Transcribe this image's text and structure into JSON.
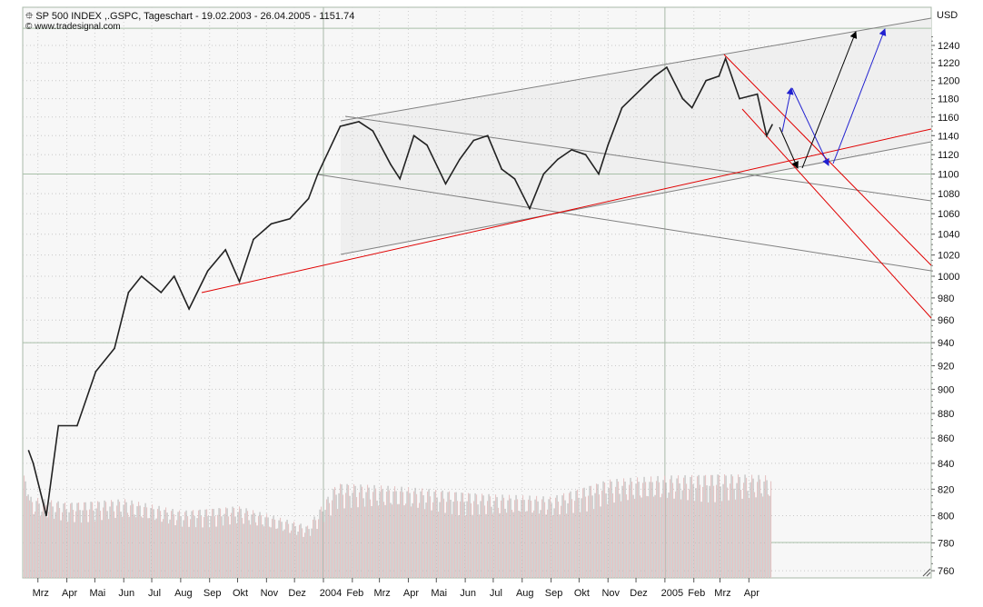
{
  "chart_data": {
    "type": "line",
    "title": "SP 500 INDEX ,.GSPC, Tageschart - 19.02.2003 - 26.04.2005 - 1151.74",
    "subtitle": "www.tradesignal.com",
    "ylabel": "USD",
    "yscale": "log",
    "ylim": [
      755,
      1275
    ],
    "xlim": [
      "2003-02-13",
      "2005-12-15"
    ],
    "grid": true,
    "yticks": [
      760,
      780,
      800,
      820,
      840,
      860,
      880,
      900,
      920,
      940,
      960,
      980,
      1000,
      1020,
      1040,
      1060,
      1080,
      1100,
      1120,
      1140,
      1160,
      1180,
      1200,
      1220,
      1240
    ],
    "xticks": [
      {
        "date": "2003-03-01",
        "label": "Mrz"
      },
      {
        "date": "2003-04-01",
        "label": "Apr"
      },
      {
        "date": "2003-05-01",
        "label": "Mai"
      },
      {
        "date": "2003-06-01",
        "label": "Jun"
      },
      {
        "date": "2003-07-01",
        "label": "Jul"
      },
      {
        "date": "2003-08-01",
        "label": "Aug"
      },
      {
        "date": "2003-09-01",
        "label": "Sep"
      },
      {
        "date": "2003-10-01",
        "label": "Okt"
      },
      {
        "date": "2003-11-01",
        "label": "Nov"
      },
      {
        "date": "2003-12-01",
        "label": "Dez"
      },
      {
        "date": "2004-01-01",
        "label": "2004"
      },
      {
        "date": "2004-02-01",
        "label": "Feb"
      },
      {
        "date": "2004-03-01",
        "label": "Mrz"
      },
      {
        "date": "2004-04-01",
        "label": "Apr"
      },
      {
        "date": "2004-05-01",
        "label": "Mai"
      },
      {
        "date": "2004-06-01",
        "label": "Jun"
      },
      {
        "date": "2004-07-01",
        "label": "Jul"
      },
      {
        "date": "2004-08-01",
        "label": "Aug"
      },
      {
        "date": "2004-09-01",
        "label": "Sep"
      },
      {
        "date": "2004-10-01",
        "label": "Okt"
      },
      {
        "date": "2004-11-01",
        "label": "Nov"
      },
      {
        "date": "2004-12-01",
        "label": "Dez"
      },
      {
        "date": "2005-01-01",
        "label": "2005"
      },
      {
        "date": "2005-02-01",
        "label": "Feb"
      },
      {
        "date": "2005-03-01",
        "label": "Mrz"
      },
      {
        "date": "2005-04-01",
        "label": "Apr"
      }
    ],
    "series": [
      {
        "color": "#222222",
        "points": [
          [
            "2003-02-19",
            850
          ],
          [
            "2003-02-24",
            840
          ],
          [
            "2003-03-10",
            800
          ],
          [
            "2003-03-23",
            870
          ],
          [
            "2003-04-12",
            870
          ],
          [
            "2003-05-02",
            915
          ],
          [
            "2003-05-22",
            935
          ],
          [
            "2003-06-06",
            985
          ],
          [
            "2003-06-20",
            1000
          ],
          [
            "2003-07-11",
            985
          ],
          [
            "2003-07-25",
            1000
          ],
          [
            "2003-08-10",
            970
          ],
          [
            "2003-08-30",
            1005
          ],
          [
            "2003-09-18",
            1025
          ],
          [
            "2003-10-03",
            995
          ],
          [
            "2003-10-18",
            1035
          ],
          [
            "2003-11-06",
            1050
          ],
          [
            "2003-11-26",
            1055
          ],
          [
            "2003-12-16",
            1075
          ],
          [
            "2003-12-26",
            1100
          ],
          [
            "2004-01-19",
            1150
          ],
          [
            "2004-02-08",
            1155
          ],
          [
            "2004-02-23",
            1145
          ],
          [
            "2004-03-13",
            1110
          ],
          [
            "2004-03-23",
            1095
          ],
          [
            "2004-04-07",
            1140
          ],
          [
            "2004-04-21",
            1130
          ],
          [
            "2004-05-11",
            1090
          ],
          [
            "2004-05-26",
            1115
          ],
          [
            "2004-06-10",
            1135
          ],
          [
            "2004-06-25",
            1140
          ],
          [
            "2004-07-10",
            1105
          ],
          [
            "2004-07-24",
            1095
          ],
          [
            "2004-08-09",
            1065
          ],
          [
            "2004-08-24",
            1100
          ],
          [
            "2004-09-08",
            1115
          ],
          [
            "2004-09-23",
            1125
          ],
          [
            "2004-10-08",
            1120
          ],
          [
            "2004-10-22",
            1100
          ],
          [
            "2004-11-01",
            1130
          ],
          [
            "2004-11-16",
            1170
          ],
          [
            "2004-12-06",
            1190
          ],
          [
            "2004-12-21",
            1205
          ],
          [
            "2005-01-03",
            1215
          ],
          [
            "2005-01-20",
            1180
          ],
          [
            "2005-01-30",
            1170
          ],
          [
            "2005-02-14",
            1200
          ],
          [
            "2005-02-28",
            1205
          ],
          [
            "2005-03-07",
            1225
          ],
          [
            "2005-03-22",
            1180
          ],
          [
            "2005-04-10",
            1185
          ],
          [
            "2005-04-20",
            1140
          ],
          [
            "2005-04-26",
            1151.74
          ]
        ]
      }
    ],
    "volume_relative": [
      [
        "2003-02-19",
        0.7
      ],
      [
        "2003-04-01",
        0.65
      ],
      [
        "2003-06-01",
        0.68
      ],
      [
        "2003-08-01",
        0.58
      ],
      [
        "2003-10-01",
        0.62
      ],
      [
        "2003-12-15",
        0.45
      ],
      [
        "2004-01-15",
        0.82
      ],
      [
        "2004-04-01",
        0.78
      ],
      [
        "2004-07-01",
        0.72
      ],
      [
        "2004-09-01",
        0.7
      ],
      [
        "2004-11-01",
        0.85
      ],
      [
        "2005-01-01",
        0.88
      ],
      [
        "2005-03-01",
        0.9
      ],
      [
        "2005-04-26",
        0.88
      ]
    ],
    "colors": {
      "price": "#222222",
      "trend_red": "#e00000",
      "trend_grey": "#808080",
      "arrow_black": "#000000",
      "arrow_blue": "#2020d0",
      "volume": "#e6c4c4",
      "volume_grey": "#b8b8b8"
    }
  }
}
